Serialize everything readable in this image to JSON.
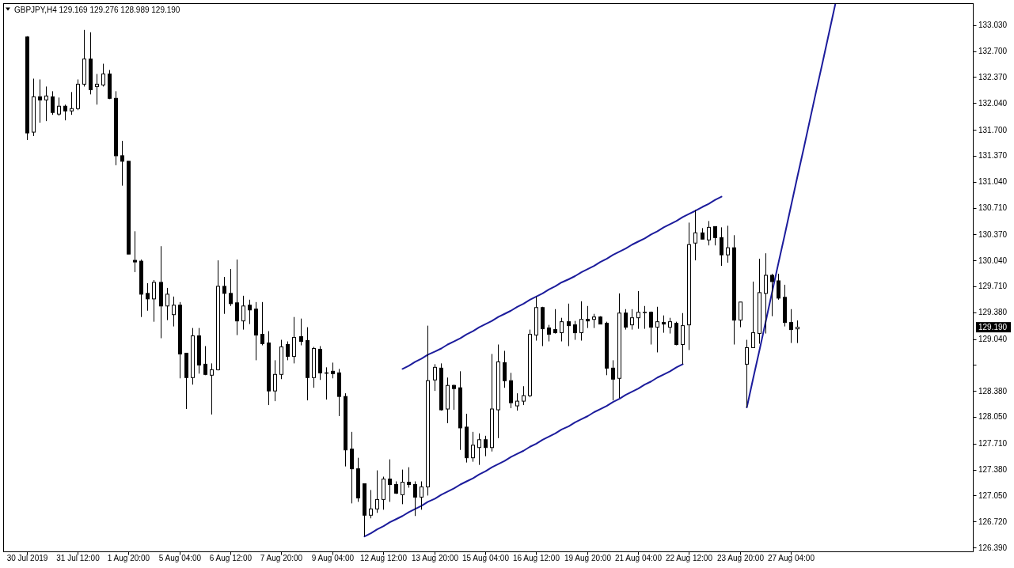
{
  "chart_data": {
    "type": "candlestick",
    "title": "GBPJPY,H4 129.169 129.276 128.989 129.190",
    "categories": [
      "30 Jul 2019",
      null,
      null,
      null,
      null,
      null,
      null,
      null,
      "31 Jul 12:00",
      null,
      null,
      null,
      null,
      null,
      null,
      null,
      "1 Aug 20:00",
      null,
      null,
      null,
      null,
      null,
      null,
      null,
      "5 Aug 04:00",
      null,
      null,
      null,
      null,
      null,
      null,
      null,
      "6 Aug 12:00",
      null,
      null,
      null,
      null,
      null,
      null,
      null,
      "7 Aug 20:00",
      null,
      null,
      null,
      null,
      null,
      null,
      null,
      "9 Aug 04:00",
      null,
      null,
      null,
      null,
      null,
      null,
      null,
      "12 Aug 12:00",
      null,
      null,
      null,
      null,
      null,
      null,
      null,
      "13 Aug 20:00",
      null,
      null,
      null,
      null,
      null,
      null,
      null,
      "15 Aug 04:00",
      null,
      null,
      null,
      null,
      null,
      null,
      null,
      "16 Aug 12:00",
      null,
      null,
      null,
      null,
      null,
      null,
      null,
      "19 Aug 20:00",
      null,
      null,
      null,
      null,
      null,
      null,
      null,
      "21 Aug 04:00",
      null,
      null,
      null,
      null,
      null,
      null,
      null,
      "22 Aug 12:00",
      null,
      null,
      null,
      null,
      null,
      null,
      null,
      "23 Aug 20:00",
      null,
      null,
      null,
      null,
      null,
      null,
      null,
      "27 Aug 04:00",
      null,
      null,
      null,
      null,
      null,
      null,
      null,
      null,
      null,
      null,
      null,
      null,
      null,
      null,
      null,
      null,
      null,
      null,
      null,
      null,
      null,
      null,
      null,
      null,
      null,
      null,
      null,
      null
    ],
    "ohlc": [
      [
        132.88,
        132.89,
        131.57,
        131.66
      ],
      [
        131.67,
        132.35,
        131.62,
        132.12
      ],
      [
        132.12,
        132.34,
        131.79,
        132.08
      ],
      [
        132.08,
        132.25,
        131.81,
        132.13
      ],
      [
        132.12,
        132.19,
        131.89,
        131.92
      ],
      [
        131.9,
        132.11,
        131.88,
        132.0
      ],
      [
        132.0,
        132.02,
        131.82,
        131.94
      ],
      [
        131.94,
        132.18,
        131.89,
        131.97
      ],
      [
        131.97,
        132.34,
        131.95,
        132.28
      ],
      [
        132.28,
        132.97,
        132.25,
        132.6
      ],
      [
        132.6,
        132.94,
        132.15,
        132.21
      ],
      [
        132.25,
        132.41,
        132.02,
        132.28
      ],
      [
        132.27,
        132.54,
        132.25,
        132.41
      ],
      [
        132.41,
        132.46,
        132.09,
        132.1
      ],
      [
        132.1,
        132.19,
        131.25,
        131.37
      ],
      [
        131.37,
        131.56,
        130.99,
        131.3
      ],
      [
        131.3,
        131.3,
        130.12,
        130.12
      ],
      [
        130.04,
        130.41,
        129.89,
        130.02
      ],
      [
        130.03,
        130.05,
        129.32,
        129.61
      ],
      [
        129.62,
        129.75,
        129.4,
        129.55
      ],
      [
        129.55,
        129.79,
        129.26,
        129.76
      ],
      [
        129.76,
        130.22,
        129.05,
        129.46
      ],
      [
        129.46,
        129.69,
        129.28,
        129.61
      ],
      [
        129.35,
        129.58,
        129.2,
        129.47
      ],
      [
        129.47,
        129.51,
        128.54,
        128.85
      ],
      [
        128.86,
        128.86,
        128.15,
        128.55
      ],
      [
        128.55,
        129.18,
        128.46,
        129.08
      ],
      [
        129.08,
        129.18,
        128.6,
        128.71
      ],
      [
        128.72,
        128.95,
        128.58,
        128.59
      ],
      [
        128.58,
        128.73,
        128.08,
        128.65
      ],
      [
        128.65,
        130.04,
        128.64,
        129.71
      ],
      [
        129.71,
        129.83,
        129.36,
        129.62
      ],
      [
        129.62,
        129.93,
        129.46,
        129.49
      ],
      [
        129.5,
        130.05,
        129.09,
        129.27
      ],
      [
        129.27,
        129.59,
        129.16,
        129.46
      ],
      [
        129.47,
        129.54,
        129.23,
        129.41
      ],
      [
        129.42,
        129.51,
        128.77,
        129.09
      ],
      [
        129.1,
        129.51,
        128.96,
        128.98
      ],
      [
        128.99,
        129.14,
        128.2,
        128.38
      ],
      [
        128.38,
        128.77,
        128.25,
        128.59
      ],
      [
        128.59,
        129.03,
        128.53,
        128.94
      ],
      [
        128.97,
        129.01,
        128.77,
        128.82
      ],
      [
        128.82,
        129.32,
        128.73,
        129.06
      ],
      [
        129.07,
        129.3,
        128.96,
        129.01
      ],
      [
        129.02,
        129.19,
        128.26,
        128.55
      ],
      [
        128.55,
        128.94,
        128.42,
        128.92
      ],
      [
        128.91,
        128.95,
        128.52,
        128.61
      ],
      [
        128.61,
        128.68,
        128.27,
        128.61
      ],
      [
        128.63,
        128.74,
        128.54,
        128.6
      ],
      [
        128.61,
        128.66,
        128.06,
        128.31
      ],
      [
        128.31,
        128.35,
        127.42,
        127.63
      ],
      [
        127.64,
        127.86,
        126.95,
        127.39
      ],
      [
        127.39,
        127.53,
        126.97,
        127.02
      ],
      [
        127.2,
        127.2,
        126.53,
        126.8
      ],
      [
        126.8,
        127.12,
        126.76,
        126.88
      ],
      [
        126.88,
        127.37,
        126.83,
        127.0
      ],
      [
        127.0,
        127.29,
        126.87,
        127.26
      ],
      [
        127.26,
        127.51,
        126.97,
        127.19
      ],
      [
        127.19,
        127.23,
        127.07,
        127.08
      ],
      [
        127.06,
        127.38,
        126.94,
        127.22
      ],
      [
        127.22,
        127.41,
        127.15,
        127.19
      ],
      [
        127.19,
        127.23,
        126.79,
        127.03
      ],
      [
        127.03,
        127.23,
        126.87,
        127.16
      ],
      [
        127.16,
        129.21,
        127.05,
        128.51
      ],
      [
        128.52,
        128.72,
        128.38,
        128.68
      ],
      [
        128.67,
        128.73,
        128.13,
        128.14
      ],
      [
        128.15,
        128.55,
        127.97,
        128.45
      ],
      [
        128.45,
        128.46,
        128.14,
        128.41
      ],
      [
        128.42,
        128.63,
        127.63,
        127.91
      ],
      [
        127.92,
        128.09,
        127.47,
        127.53
      ],
      [
        127.53,
        127.86,
        127.48,
        127.69
      ],
      [
        127.66,
        127.84,
        127.44,
        127.76
      ],
      [
        127.76,
        127.81,
        127.55,
        127.66
      ],
      [
        127.66,
        128.85,
        127.61,
        128.15
      ],
      [
        128.14,
        128.97,
        127.78,
        128.75
      ],
      [
        128.74,
        128.89,
        128.42,
        128.51
      ],
      [
        128.51,
        128.61,
        128.16,
        128.23
      ],
      [
        128.19,
        128.35,
        128.13,
        128.25
      ],
      [
        128.25,
        128.44,
        128.2,
        128.32
      ],
      [
        128.32,
        129.16,
        128.3,
        129.1
      ],
      [
        129.09,
        129.58,
        129.02,
        129.44
      ],
      [
        129.44,
        129.45,
        128.95,
        129.17
      ],
      [
        129.18,
        129.22,
        129.01,
        129.1
      ],
      [
        129.16,
        129.42,
        129.11,
        129.12
      ],
      [
        129.12,
        129.31,
        129.01,
        129.26
      ],
      [
        129.26,
        129.49,
        128.95,
        129.21
      ],
      [
        129.22,
        129.27,
        129.03,
        129.12
      ],
      [
        129.12,
        129.52,
        129.02,
        129.29
      ],
      [
        129.29,
        129.46,
        129.18,
        129.27
      ],
      [
        129.29,
        129.36,
        129.18,
        129.32
      ],
      [
        129.32,
        129.33,
        129.23,
        129.23
      ],
      [
        129.24,
        129.26,
        128.58,
        128.67
      ],
      [
        128.67,
        128.77,
        128.26,
        128.53
      ],
      [
        128.54,
        129.62,
        128.29,
        129.37
      ],
      [
        129.37,
        129.42,
        129.16,
        129.19
      ],
      [
        129.22,
        129.42,
        129.16,
        129.31
      ],
      [
        129.31,
        129.65,
        129.17,
        129.38
      ],
      [
        129.38,
        129.46,
        129.17,
        129.38
      ],
      [
        129.38,
        129.39,
        128.97,
        129.19
      ],
      [
        129.19,
        129.45,
        128.87,
        129.26
      ],
      [
        129.25,
        129.34,
        129.12,
        129.23
      ],
      [
        129.19,
        129.31,
        129.11,
        129.26
      ],
      [
        129.24,
        129.26,
        128.96,
        128.97
      ],
      [
        128.97,
        129.37,
        128.72,
        129.21
      ],
      [
        129.22,
        130.52,
        128.9,
        130.24
      ],
      [
        130.26,
        130.68,
        130.04,
        130.39
      ],
      [
        130.39,
        130.45,
        130.31,
        130.31
      ],
      [
        130.3,
        130.54,
        130.23,
        130.46
      ],
      [
        130.47,
        130.47,
        130.23,
        130.33
      ],
      [
        130.33,
        130.46,
        129.97,
        130.11
      ],
      [
        130.11,
        130.48,
        130.01,
        130.2
      ],
      [
        130.2,
        130.36,
        128.97,
        129.28
      ],
      [
        129.28,
        129.51,
        129.19,
        129.51
      ],
      [
        128.72,
        129.03,
        128.17,
        128.93
      ],
      [
        128.93,
        129.77,
        128.93,
        129.12
      ],
      [
        129.11,
        130.06,
        128.98,
        129.63
      ],
      [
        129.62,
        130.13,
        129.11,
        129.85
      ],
      [
        129.85,
        129.87,
        129.33,
        129.77
      ],
      [
        129.78,
        129.87,
        129.54,
        129.56
      ],
      [
        129.57,
        129.73,
        129.2,
        129.25
      ],
      [
        129.25,
        129.42,
        128.99,
        129.16
      ],
      [
        129.169,
        129.276,
        128.989,
        129.19
      ],
      null,
      null,
      null,
      null,
      null,
      null,
      null,
      null,
      null,
      null,
      null,
      null,
      null,
      null,
      null,
      null,
      null,
      null,
      null,
      null,
      null,
      null,
      null,
      null,
      null,
      null,
      null
    ],
    "series": [
      {
        "type": "line",
        "color": "#1c1c9c",
        "values": [
          null,
          null,
          null,
          null,
          null,
          null,
          null,
          null,
          null,
          null,
          null,
          null,
          null,
          null,
          null,
          null,
          null,
          null,
          null,
          null,
          null,
          null,
          null,
          null,
          null,
          null,
          null,
          null,
          null,
          null,
          null,
          null,
          null,
          null,
          null,
          null,
          null,
          null,
          null,
          null,
          null,
          null,
          null,
          null,
          null,
          null,
          null,
          null,
          null,
          null,
          null,
          null,
          null,
          126.53,
          126.57,
          126.62,
          126.66,
          126.71,
          126.75,
          126.79,
          126.84,
          126.88,
          126.92,
          126.97,
          127.01,
          127.06,
          127.1,
          127.14,
          127.19,
          127.23,
          127.27,
          127.32,
          127.36,
          127.41,
          127.45,
          127.49,
          127.54,
          127.58,
          127.62,
          127.67,
          127.71,
          127.76,
          127.8,
          127.84,
          127.89,
          127.93,
          127.98,
          128.02,
          128.06,
          128.11,
          128.15,
          128.19,
          128.24,
          128.28,
          128.33,
          128.37,
          128.41,
          128.46,
          128.5,
          128.55,
          128.59,
          128.63,
          128.68,
          128.72,
          null,
          null,
          null,
          null,
          null,
          null,
          null,
          null,
          null,
          null,
          null,
          null,
          null,
          null,
          null,
          null,
          null,
          null,
          null,
          null,
          null,
          null,
          null,
          null,
          null,
          null,
          null,
          null,
          null,
          null,
          null,
          null,
          null,
          null,
          null,
          null,
          null,
          null,
          null,
          null,
          null,
          null,
          null,
          null,
          null
        ]
      },
      {
        "type": "line",
        "color": "#1c1c9c",
        "values": [
          null,
          null,
          null,
          null,
          null,
          null,
          null,
          null,
          null,
          null,
          null,
          null,
          null,
          null,
          null,
          null,
          null,
          null,
          null,
          null,
          null,
          null,
          null,
          null,
          null,
          null,
          null,
          null,
          null,
          null,
          null,
          null,
          null,
          null,
          null,
          null,
          null,
          null,
          null,
          null,
          null,
          null,
          null,
          null,
          null,
          null,
          null,
          null,
          null,
          null,
          null,
          null,
          null,
          null,
          null,
          null,
          null,
          null,
          null,
          128.66,
          128.7,
          128.75,
          128.79,
          128.84,
          128.88,
          128.92,
          128.97,
          129.01,
          129.05,
          129.1,
          129.14,
          129.19,
          129.23,
          129.27,
          129.32,
          129.36,
          129.4,
          129.45,
          129.49,
          129.54,
          129.58,
          129.62,
          129.67,
          129.71,
          129.76,
          129.8,
          129.84,
          129.89,
          129.93,
          129.97,
          130.02,
          130.06,
          130.11,
          130.15,
          130.19,
          130.24,
          130.28,
          130.32,
          130.37,
          130.41,
          130.46,
          130.5,
          130.54,
          130.59,
          130.63,
          130.67,
          130.72,
          130.76,
          130.81,
          130.85,
          null,
          null,
          null,
          null,
          null,
          null,
          null,
          null,
          null,
          null,
          null,
          null,
          null,
          null,
          null,
          null,
          null,
          null,
          null,
          null,
          null,
          null,
          null,
          null,
          null,
          null,
          null,
          null,
          null,
          null,
          null,
          null,
          null,
          null,
          null,
          null,
          null,
          null,
          null
        ]
      },
      {
        "type": "line",
        "color": "#1c1c9c",
        "values": [
          null,
          null,
          null,
          null,
          null,
          null,
          null,
          null,
          null,
          null,
          null,
          null,
          null,
          null,
          null,
          null,
          null,
          null,
          null,
          null,
          null,
          null,
          null,
          null,
          null,
          null,
          null,
          null,
          null,
          null,
          null,
          null,
          null,
          null,
          null,
          null,
          null,
          null,
          null,
          null,
          null,
          null,
          null,
          null,
          null,
          null,
          null,
          null,
          null,
          null,
          null,
          null,
          null,
          null,
          null,
          null,
          null,
          null,
          null,
          null,
          null,
          null,
          null,
          null,
          null,
          null,
          null,
          null,
          null,
          null,
          null,
          null,
          null,
          null,
          null,
          null,
          null,
          null,
          null,
          null,
          null,
          null,
          null,
          null,
          null,
          null,
          null,
          null,
          null,
          null,
          null,
          null,
          null,
          null,
          null,
          null,
          null,
          null,
          null,
          null,
          null,
          null,
          null,
          null,
          null,
          null,
          null,
          null,
          null,
          null,
          null,
          null,
          null,
          128.17,
          128.54,
          128.9,
          129.27,
          129.64,
          130.01,
          130.37,
          130.74,
          131.11,
          131.47,
          131.84,
          132.21,
          132.57,
          132.94,
          133.31,
          null,
          null,
          null,
          null,
          null,
          null,
          null,
          null,
          null,
          null,
          null,
          null,
          null,
          null,
          null,
          null,
          null,
          null,
          null,
          null,
          null
        ]
      }
    ],
    "ylim": [
      126.34,
      133.31
    ],
    "yticks": [
      {
        "value": 133.03,
        "label": "133.030"
      },
      {
        "value": 132.7,
        "label": "132.700"
      },
      {
        "value": 132.37,
        "label": "132.370"
      },
      {
        "value": 132.04,
        "label": "132.040"
      },
      {
        "value": 131.7,
        "label": "131.700"
      },
      {
        "value": 131.37,
        "label": "131.370"
      },
      {
        "value": 131.04,
        "label": "131.040"
      },
      {
        "value": 130.71,
        "label": "130.710"
      },
      {
        "value": 130.37,
        "label": "130.370"
      },
      {
        "value": 130.04,
        "label": "130.040"
      },
      {
        "value": 129.71,
        "label": "129.710"
      },
      {
        "value": 129.38,
        "label": "129.380"
      },
      {
        "value": 129.04,
        "label": "129.040"
      },
      {
        "value": 128.71,
        "label": null
      },
      {
        "value": 128.38,
        "label": "128.380"
      },
      {
        "value": 128.05,
        "label": "128.050"
      },
      {
        "value": 127.71,
        "label": "127.710"
      },
      {
        "value": 127.38,
        "label": "127.380"
      },
      {
        "value": 127.05,
        "label": "127.050"
      },
      {
        "value": 126.72,
        "label": "126.720"
      },
      {
        "value": 126.39,
        "label": "126.390"
      }
    ],
    "annotations": [
      "129.190"
    ]
  }
}
